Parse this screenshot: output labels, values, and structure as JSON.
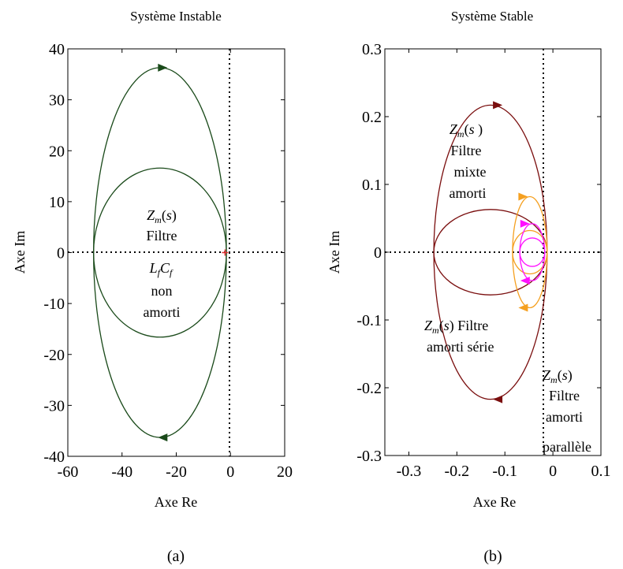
{
  "chart_data": [
    {
      "type": "line",
      "panel_label": "(a)",
      "title": "Système Instable",
      "xlabel": "Axe Re",
      "ylabel": "Axe Im",
      "xlim": [
        -60,
        20
      ],
      "ylim": [
        -40,
        40
      ],
      "xticks": [
        -60,
        -40,
        -20,
        0,
        20
      ],
      "yticks": [
        -40,
        -30,
        -20,
        -10,
        0,
        10,
        20,
        30,
        40
      ],
      "xtick_labels": [
        "-60",
        "-40",
        "-20",
        "0",
        "20"
      ],
      "ytick_labels": [
        "-40",
        "-30",
        "-20",
        "-10",
        "0",
        "10",
        "20",
        "30",
        "40"
      ],
      "reference_lines": [
        "x = 0",
        "y = 0"
      ],
      "marker": {
        "x": -2,
        "y": 0,
        "color": "#e03030"
      },
      "series": [
        {
          "color": "#1a4a1a",
          "curves": [
            {
              "center": [
                -26,
                0
              ],
              "rx": 24.5,
              "ry": 36.3,
              "arrows": [
                {
                  "x": -25,
                  "y": 36.3,
                  "dir": "right"
                },
                {
                  "x": -25,
                  "y": -36.3,
                  "dir": "left"
                }
              ]
            },
            {
              "center": [
                -26,
                0
              ],
              "rx": 24.5,
              "ry": 16.6,
              "arrows": []
            }
          ]
        }
      ],
      "annotations": [
        {
          "lines": [
            "Zm(s)",
            "Filtre",
            "LfCf",
            "non",
            "amorti"
          ],
          "color": "#2a5a2a"
        }
      ]
    },
    {
      "type": "line",
      "panel_label": "(b)",
      "title": "Système Stable",
      "xlabel": "Axe Re",
      "ylabel": "Axe Im",
      "xlim": [
        -0.35,
        0.1
      ],
      "ylim": [
        -0.3,
        0.3
      ],
      "xticks": [
        -0.3,
        -0.2,
        -0.1,
        0,
        0.1
      ],
      "yticks": [
        -0.3,
        -0.2,
        -0.1,
        0,
        0.1,
        0.2,
        0.3
      ],
      "xtick_labels": [
        "-0.3",
        "-0.2",
        "-0.1",
        "0",
        "0.1"
      ],
      "ytick_labels": [
        "-0.3",
        "-0.2",
        "-0.1",
        "0",
        "0.1",
        "0.2",
        "0.3"
      ],
      "reference_lines": [
        "x = 0",
        "y = 0"
      ],
      "series": [
        {
          "color": "#7a0e0e",
          "curves": [
            {
              "center": [
                -0.13,
                0
              ],
              "rx": 0.118,
              "ry": 0.217,
              "arrows": [
                {
                  "x": -0.115,
                  "y": 0.217,
                  "dir": "right"
                },
                {
                  "x": -0.115,
                  "y": -0.217,
                  "dir": "left"
                }
              ]
            },
            {
              "center": [
                -0.13,
                0
              ],
              "rx": 0.118,
              "ry": 0.063,
              "arrows": []
            }
          ]
        },
        {
          "color": "#f5a020",
          "curves": [
            {
              "center": [
                -0.048,
                0
              ],
              "rx": 0.036,
              "ry": 0.082,
              "arrows": [
                {
                  "x": -0.062,
                  "y": 0.082,
                  "dir": "right"
                },
                {
                  "x": -0.062,
                  "y": -0.082,
                  "dir": "left"
                }
              ]
            },
            {
              "center": [
                -0.048,
                0
              ],
              "rx": 0.036,
              "ry": 0.032,
              "arrows": []
            }
          ]
        },
        {
          "color": "#ff10ff",
          "curves": [
            {
              "center": [
                -0.043,
                0
              ],
              "rx": 0.026,
              "ry": 0.042,
              "arrows": [
                {
                  "x": -0.058,
                  "y": 0.042,
                  "dir": "right"
                },
                {
                  "x": -0.058,
                  "y": -0.042,
                  "dir": "left"
                }
              ]
            },
            {
              "center": [
                -0.043,
                0
              ],
              "rx": 0.026,
              "ry": 0.021,
              "arrows": []
            }
          ]
        }
      ],
      "annotations": [
        {
          "lines": [
            "Zm(s )",
            "Filtre",
            "mixte",
            "amorti"
          ],
          "color": "#ff10ff"
        },
        {
          "lines": [
            "Zm(s)  Filtre",
            "amorti série"
          ],
          "color": "#f5a020"
        },
        {
          "lines": [
            "Zm(s)",
            "Filtre",
            "amorti",
            "parallèle"
          ],
          "color": "#7a0e0e"
        }
      ]
    }
  ]
}
